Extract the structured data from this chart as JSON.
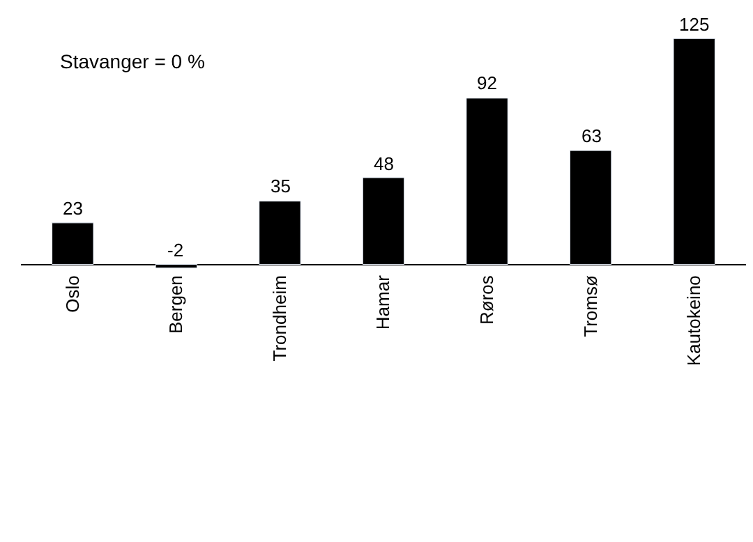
{
  "chart_data": {
    "type": "bar",
    "categories": [
      "Oslo",
      "Bergen",
      "Trondheim",
      "Hamar",
      "Røros",
      "Tromsø",
      "Kautokeino"
    ],
    "values": [
      23,
      -2,
      35,
      48,
      92,
      63,
      125
    ],
    "color": "#000000",
    "data_labels": true,
    "legend": false,
    "annotations": [
      "Stavanger = 0 %"
    ]
  }
}
